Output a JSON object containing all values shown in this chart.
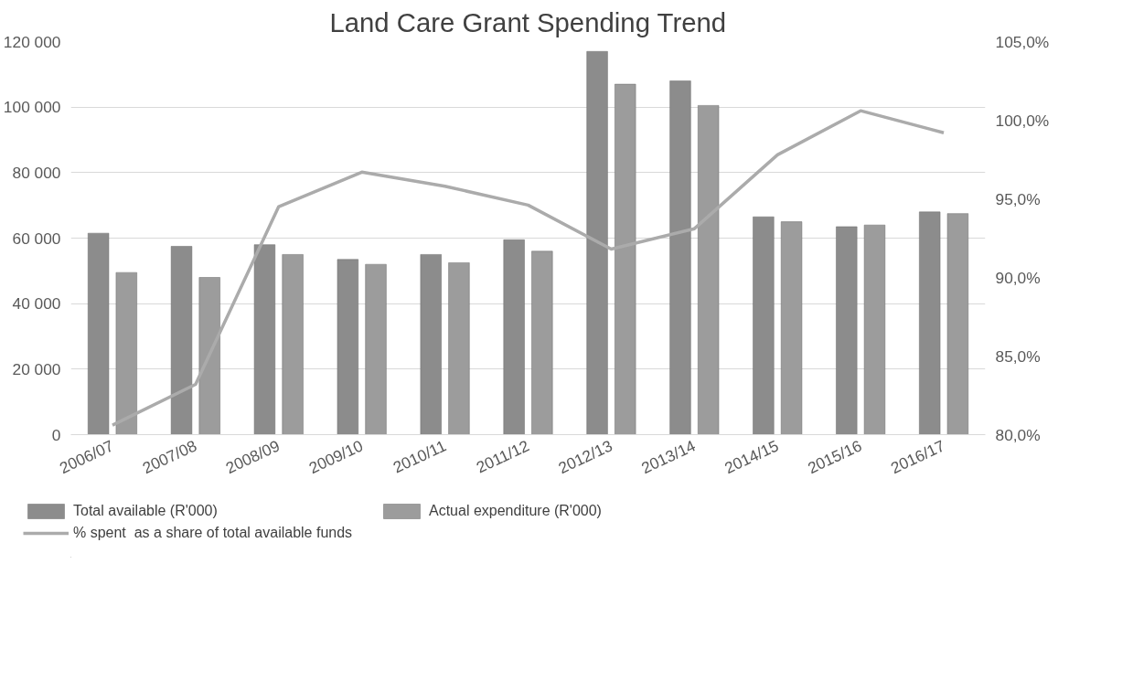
{
  "chart_data": {
    "type": "bar",
    "title": "Land Care Grant Spending Trend",
    "categories": [
      "2006/07",
      "2007/08",
      "2008/09",
      "2009/10",
      "2010/11",
      "2011/12",
      "2012/13",
      "2013/14",
      "2014/15",
      "2015/16",
      "2016/17"
    ],
    "series": [
      {
        "name": "Total available (R'000)",
        "color": "#8c8c8c",
        "values": [
          61500,
          57500,
          58000,
          53500,
          55000,
          59500,
          117000,
          108000,
          66500,
          63500,
          68000
        ]
      },
      {
        "name": "Actual expenditure (R'000)",
        "color": "#9c9c9c",
        "values": [
          49500,
          48000,
          55000,
          52000,
          52500,
          56000,
          107000,
          100500,
          65000,
          64000,
          67500
        ]
      },
      {
        "name": "% spent  as a share of total available funds",
        "type": "line",
        "axis": "y2",
        "color": "#ababab",
        "values": [
          80.6,
          83.2,
          94.5,
          96.7,
          95.8,
          94.6,
          91.8,
          93.1,
          97.8,
          100.6,
          99.2
        ]
      }
    ],
    "ylim": [
      0,
      120000
    ],
    "yticks": [
      0,
      {
        "value": 20000,
        "label": "20 000"
      },
      {
        "value": 40000,
        "label": "40 000"
      },
      {
        "value": 60000,
        "label": "60 000"
      },
      {
        "value": 80000,
        "label": "80 000"
      },
      {
        "value": 100000,
        "label": "100 000"
      },
      {
        "value": 120000,
        "label": "120 000"
      }
    ],
    "y2lim": [
      80,
      105
    ],
    "y2ticks": [
      {
        "value": 80,
        "label": "80,0%"
      },
      {
        "value": 85,
        "label": "85,0%"
      },
      {
        "value": 90,
        "label": "90,0%"
      },
      {
        "value": 95,
        "label": "95,0%"
      },
      {
        "value": 100,
        "label": "100,0%"
      },
      {
        "value": 105,
        "label": "105,0%"
      }
    ],
    "grid": "y",
    "legend": "bottom"
  }
}
